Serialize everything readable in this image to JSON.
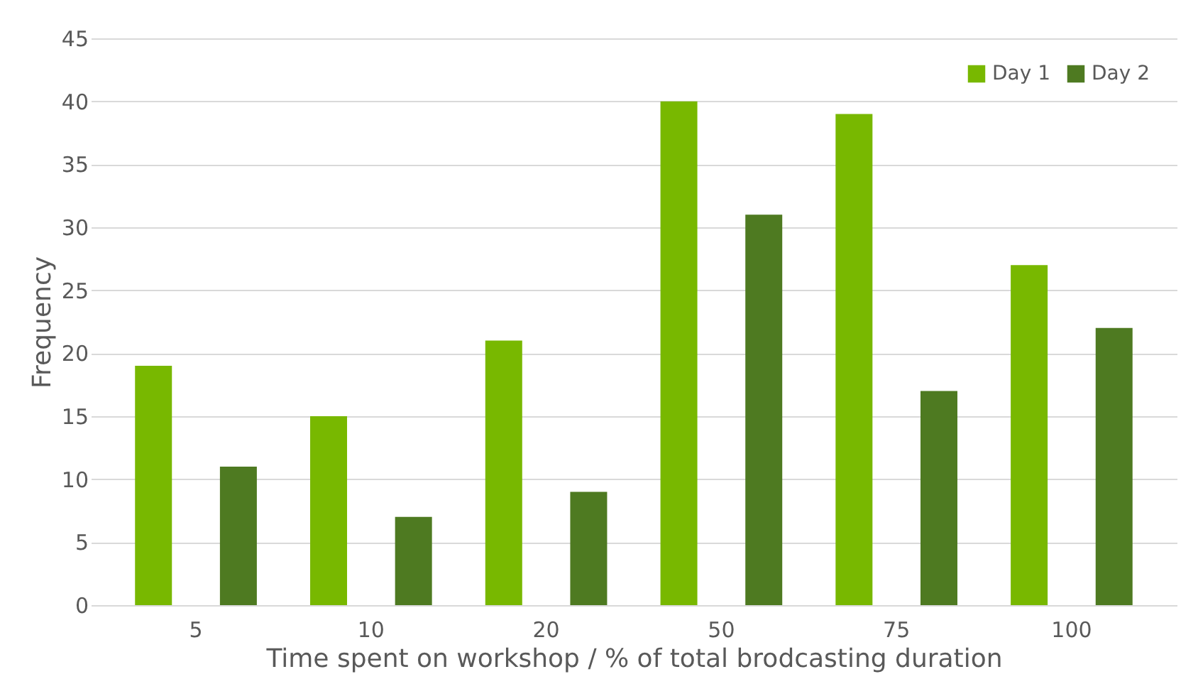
{
  "chart_data": {
    "type": "bar",
    "xlabel": "Time spent on workshop / % of total brodcasting duration",
    "ylabel": "Frequency",
    "categories": [
      "5",
      "10",
      "20",
      "50",
      "75",
      "100"
    ],
    "series": [
      {
        "name": "Day 1",
        "color": "#78b800",
        "values": [
          19,
          15,
          21,
          40,
          39,
          27
        ]
      },
      {
        "name": "Day 2",
        "color": "#4e7a21",
        "values": [
          11,
          7,
          9,
          31,
          17,
          22
        ]
      }
    ],
    "ylim": [
      0,
      45
    ],
    "yticks": [
      0,
      5,
      10,
      15,
      20,
      25,
      30,
      35,
      40,
      45
    ],
    "grid": "y",
    "legend": "top right"
  }
}
